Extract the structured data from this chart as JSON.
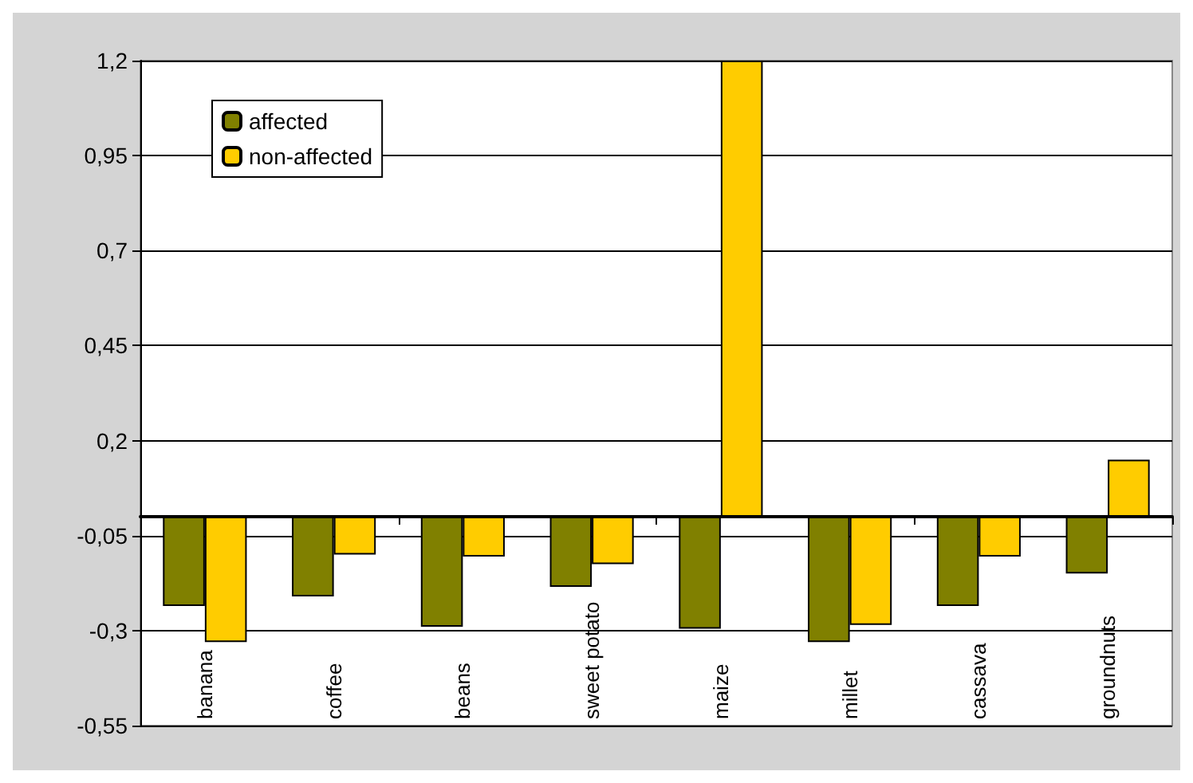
{
  "chart_data": {
    "type": "bar",
    "categories": [
      "banana",
      "coffee",
      "beans",
      "sweet potato",
      "maize",
      "millet",
      "cassava",
      "groundnuts"
    ],
    "series": [
      {
        "name": "affected",
        "color": "#808000",
        "values": [
          -0.235,
          -0.21,
          -0.29,
          -0.185,
          -0.295,
          -0.33,
          -0.235,
          -0.15
        ]
      },
      {
        "name": "non-affected",
        "color": "#ffcc00",
        "values": [
          -0.33,
          -0.1,
          -0.105,
          -0.125,
          1.2,
          -0.285,
          -0.105,
          0.15
        ]
      }
    ],
    "ylim": [
      -0.55,
      1.2
    ],
    "yticks": [
      {
        "value": -0.55,
        "label": "-0,55"
      },
      {
        "value": -0.3,
        "label": "-0,3"
      },
      {
        "value": -0.05,
        "label": "-0,05"
      },
      {
        "value": 0.2,
        "label": "0,2"
      },
      {
        "value": 0.45,
        "label": "0,45"
      },
      {
        "value": 0.7,
        "label": "0,7"
      },
      {
        "value": 0.95,
        "label": "0,95"
      },
      {
        "value": 1.2,
        "label": "1,2"
      }
    ],
    "grid": "y",
    "legend": "top left"
  }
}
